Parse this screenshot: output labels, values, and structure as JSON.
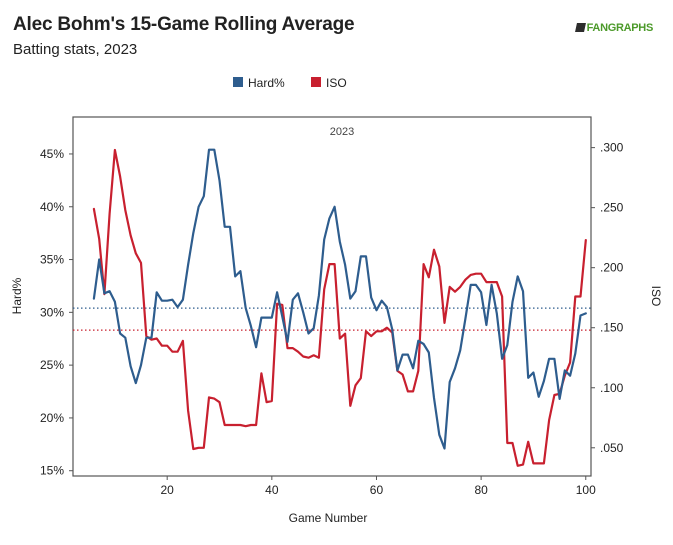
{
  "header": {
    "title": "Alec Bohm's 15-Game Rolling Average",
    "subtitle": "Batting stats, 2023",
    "brand": "FANGRAPHS"
  },
  "colors": {
    "hard": "#2e5d8e",
    "iso": "#c8202f"
  },
  "chart_data": {
    "type": "line",
    "panel_label": "2023",
    "xlabel": "Game Number",
    "ylabel_left": "Hard%",
    "ylabel_right": "ISO",
    "xlim": [
      2,
      101
    ],
    "ylim_left": [
      14.5,
      48.5
    ],
    "ylim_right": [
      0.0265,
      0.3255
    ],
    "x_ticks": [
      20,
      40,
      60,
      80,
      100
    ],
    "x_tick_labels": [
      "20",
      "40",
      "60",
      "80",
      "100"
    ],
    "y_left_ticks": [
      15,
      20,
      25,
      30,
      35,
      40,
      45
    ],
    "y_left_tick_labels": [
      "15%",
      "20%",
      "25%",
      "30%",
      "35%",
      "40%",
      "45%"
    ],
    "y_right_ticks": [
      0.05,
      0.1,
      0.15,
      0.2,
      0.25,
      0.3
    ],
    "y_right_tick_labels": [
      ".050",
      ".100",
      ".150",
      ".200",
      ".250",
      ".300"
    ],
    "grid": false,
    "legend": {
      "position": "top-center",
      "entries": [
        "Hard%",
        "ISO"
      ]
    },
    "series": [
      {
        "name": "Hard%",
        "axis": "left",
        "x": [
          6,
          7,
          8,
          9,
          10,
          11,
          12,
          13,
          14,
          15,
          16,
          17,
          18,
          19,
          20,
          21,
          22,
          23,
          24,
          25,
          26,
          27,
          28,
          29,
          30,
          31,
          32,
          33,
          34,
          35,
          36,
          37,
          38,
          39,
          40,
          41,
          42,
          43,
          44,
          45,
          46,
          47,
          48,
          49,
          50,
          51,
          52,
          53,
          54,
          55,
          56,
          57,
          58,
          59,
          60,
          61,
          62,
          63,
          64,
          65,
          66,
          67,
          68,
          69,
          70,
          71,
          72,
          73,
          74,
          75,
          76,
          77,
          78,
          79,
          80,
          81,
          82,
          83,
          84,
          85,
          86,
          87,
          88,
          89,
          90,
          91,
          92,
          93,
          94,
          95,
          96,
          97,
          98,
          99,
          100
        ],
        "values": [
          31.3,
          35.0,
          31.8,
          32.0,
          31.0,
          28.0,
          27.6,
          24.9,
          23.3,
          25.0,
          27.6,
          27.6,
          31.9,
          31.1,
          31.1,
          31.2,
          30.5,
          31.2,
          34.5,
          37.5,
          40.0,
          41.0,
          45.4,
          45.4,
          42.5,
          38.1,
          38.1,
          33.4,
          33.9,
          30.4,
          28.7,
          26.7,
          29.5,
          29.5,
          29.5,
          31.9,
          29.6,
          27.2,
          31.2,
          31.8,
          30.0,
          28.0,
          28.5,
          31.6,
          36.9,
          38.9,
          40.0,
          36.7,
          34.5,
          31.3,
          32.0,
          35.3,
          35.3,
          31.4,
          30.2,
          31.1,
          30.5,
          28.4,
          24.5,
          26.0,
          26.0,
          24.7,
          27.3,
          27.0,
          26.2,
          21.9,
          18.4,
          17.1,
          23.4,
          24.7,
          26.4,
          29.4,
          32.6,
          32.6,
          31.9,
          28.8,
          32.6,
          29.9,
          25.6,
          26.9,
          31.0,
          33.4,
          32.0,
          23.8,
          24.3,
          22.0,
          23.5,
          25.6,
          25.6,
          21.8,
          24.5,
          24.0,
          26.1,
          29.7,
          29.9
        ]
      },
      {
        "name": "ISO",
        "axis": "right",
        "x": [
          6,
          7,
          8,
          9,
          10,
          11,
          12,
          13,
          14,
          15,
          16,
          17,
          18,
          19,
          20,
          21,
          22,
          23,
          24,
          25,
          26,
          27,
          28,
          29,
          30,
          31,
          32,
          33,
          34,
          35,
          36,
          37,
          38,
          39,
          40,
          41,
          42,
          43,
          44,
          45,
          46,
          47,
          48,
          49,
          50,
          51,
          52,
          53,
          54,
          55,
          56,
          57,
          58,
          59,
          60,
          61,
          62,
          63,
          64,
          65,
          66,
          67,
          68,
          69,
          70,
          71,
          72,
          73,
          74,
          75,
          76,
          77,
          78,
          79,
          80,
          81,
          82,
          83,
          84,
          85,
          86,
          87,
          88,
          89,
          90,
          91,
          92,
          93,
          94,
          95,
          96,
          97,
          98,
          99,
          100
        ],
        "values": [
          0.249,
          0.224,
          0.178,
          0.245,
          0.298,
          0.276,
          0.248,
          0.227,
          0.212,
          0.204,
          0.143,
          0.14,
          0.141,
          0.135,
          0.135,
          0.13,
          0.13,
          0.139,
          0.081,
          0.049,
          0.05,
          0.05,
          0.092,
          0.091,
          0.088,
          0.069,
          0.069,
          0.069,
          0.069,
          0.068,
          0.069,
          0.069,
          0.112,
          0.088,
          0.089,
          0.17,
          0.169,
          0.133,
          0.133,
          0.13,
          0.126,
          0.125,
          0.127,
          0.125,
          0.182,
          0.203,
          0.203,
          0.141,
          0.145,
          0.085,
          0.102,
          0.108,
          0.147,
          0.143,
          0.147,
          0.147,
          0.15,
          0.146,
          0.114,
          0.111,
          0.097,
          0.097,
          0.114,
          0.203,
          0.192,
          0.215,
          0.201,
          0.154,
          0.184,
          0.18,
          0.184,
          0.19,
          0.194,
          0.195,
          0.195,
          0.188,
          0.188,
          0.188,
          0.176,
          0.054,
          0.054,
          0.035,
          0.036,
          0.055,
          0.037,
          0.037,
          0.037,
          0.073,
          0.094,
          0.095,
          0.11,
          0.121,
          0.176,
          0.176,
          0.223
        ]
      }
    ],
    "reference_lines": [
      {
        "series": "Hard%",
        "axis": "left",
        "value": 30.4
      },
      {
        "series": "ISO",
        "axis": "right",
        "value": 0.148
      }
    ]
  }
}
